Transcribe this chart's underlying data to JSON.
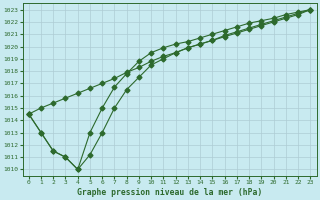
{
  "line1_x": [
    0,
    1,
    2,
    3,
    4,
    5,
    6,
    7,
    8,
    9,
    10,
    11,
    12,
    13,
    14,
    15,
    16,
    17,
    18,
    19,
    20,
    21,
    22,
    23
  ],
  "line1_y": [
    1014.5,
    1015.0,
    1015.4,
    1015.8,
    1016.2,
    1016.6,
    1017.0,
    1017.4,
    1017.9,
    1018.3,
    1018.8,
    1019.2,
    1019.5,
    1019.9,
    1020.2,
    1020.5,
    1020.8,
    1021.1,
    1021.4,
    1021.7,
    1022.0,
    1022.3,
    1022.6,
    1023.0
  ],
  "line2_x": [
    0,
    1,
    2,
    3,
    4,
    5,
    6,
    7,
    8,
    9,
    10,
    11,
    12,
    13,
    14,
    15,
    16,
    17,
    18,
    19,
    20,
    21,
    22,
    23
  ],
  "line2_y": [
    1014.5,
    1013.0,
    1011.5,
    1011.0,
    1010.0,
    1013.0,
    1015.0,
    1016.7,
    1017.8,
    1018.8,
    1019.5,
    1019.9,
    1020.2,
    1020.4,
    1020.7,
    1021.0,
    1021.3,
    1021.6,
    1021.9,
    1022.1,
    1022.3,
    1022.6,
    1022.8,
    1023.0
  ],
  "line3_x": [
    0,
    1,
    2,
    3,
    4,
    5,
    6,
    7,
    8,
    9,
    10,
    11,
    12,
    13,
    14,
    15,
    16,
    17,
    18,
    19,
    20,
    21,
    22,
    23
  ],
  "line3_y": [
    1014.5,
    1013.0,
    1011.5,
    1011.0,
    1010.0,
    1011.2,
    1013.0,
    1015.0,
    1016.5,
    1017.5,
    1018.5,
    1019.0,
    1019.5,
    1019.9,
    1020.2,
    1020.5,
    1020.9,
    1021.2,
    1021.5,
    1021.8,
    1022.1,
    1022.4,
    1022.7,
    1023.0
  ],
  "line_color": "#2d6a2d",
  "bg_color": "#c8eaf0",
  "grid_color": "#aeccd4",
  "xlabel": "Graphe pression niveau de la mer (hPa)",
  "ylim_min": 1009.5,
  "ylim_max": 1023.5,
  "xlim_min": -0.5,
  "xlim_max": 23.5,
  "yticks": [
    1010,
    1011,
    1012,
    1013,
    1014,
    1015,
    1016,
    1017,
    1018,
    1019,
    1020,
    1021,
    1022,
    1023
  ],
  "xticks": [
    0,
    1,
    2,
    3,
    4,
    5,
    6,
    7,
    8,
    9,
    10,
    11,
    12,
    13,
    14,
    15,
    16,
    17,
    18,
    19,
    20,
    21,
    22,
    23
  ],
  "marker_size": 2.5,
  "line_width": 0.8,
  "xlabel_fontsize": 5.8,
  "tick_fontsize": 4.5
}
